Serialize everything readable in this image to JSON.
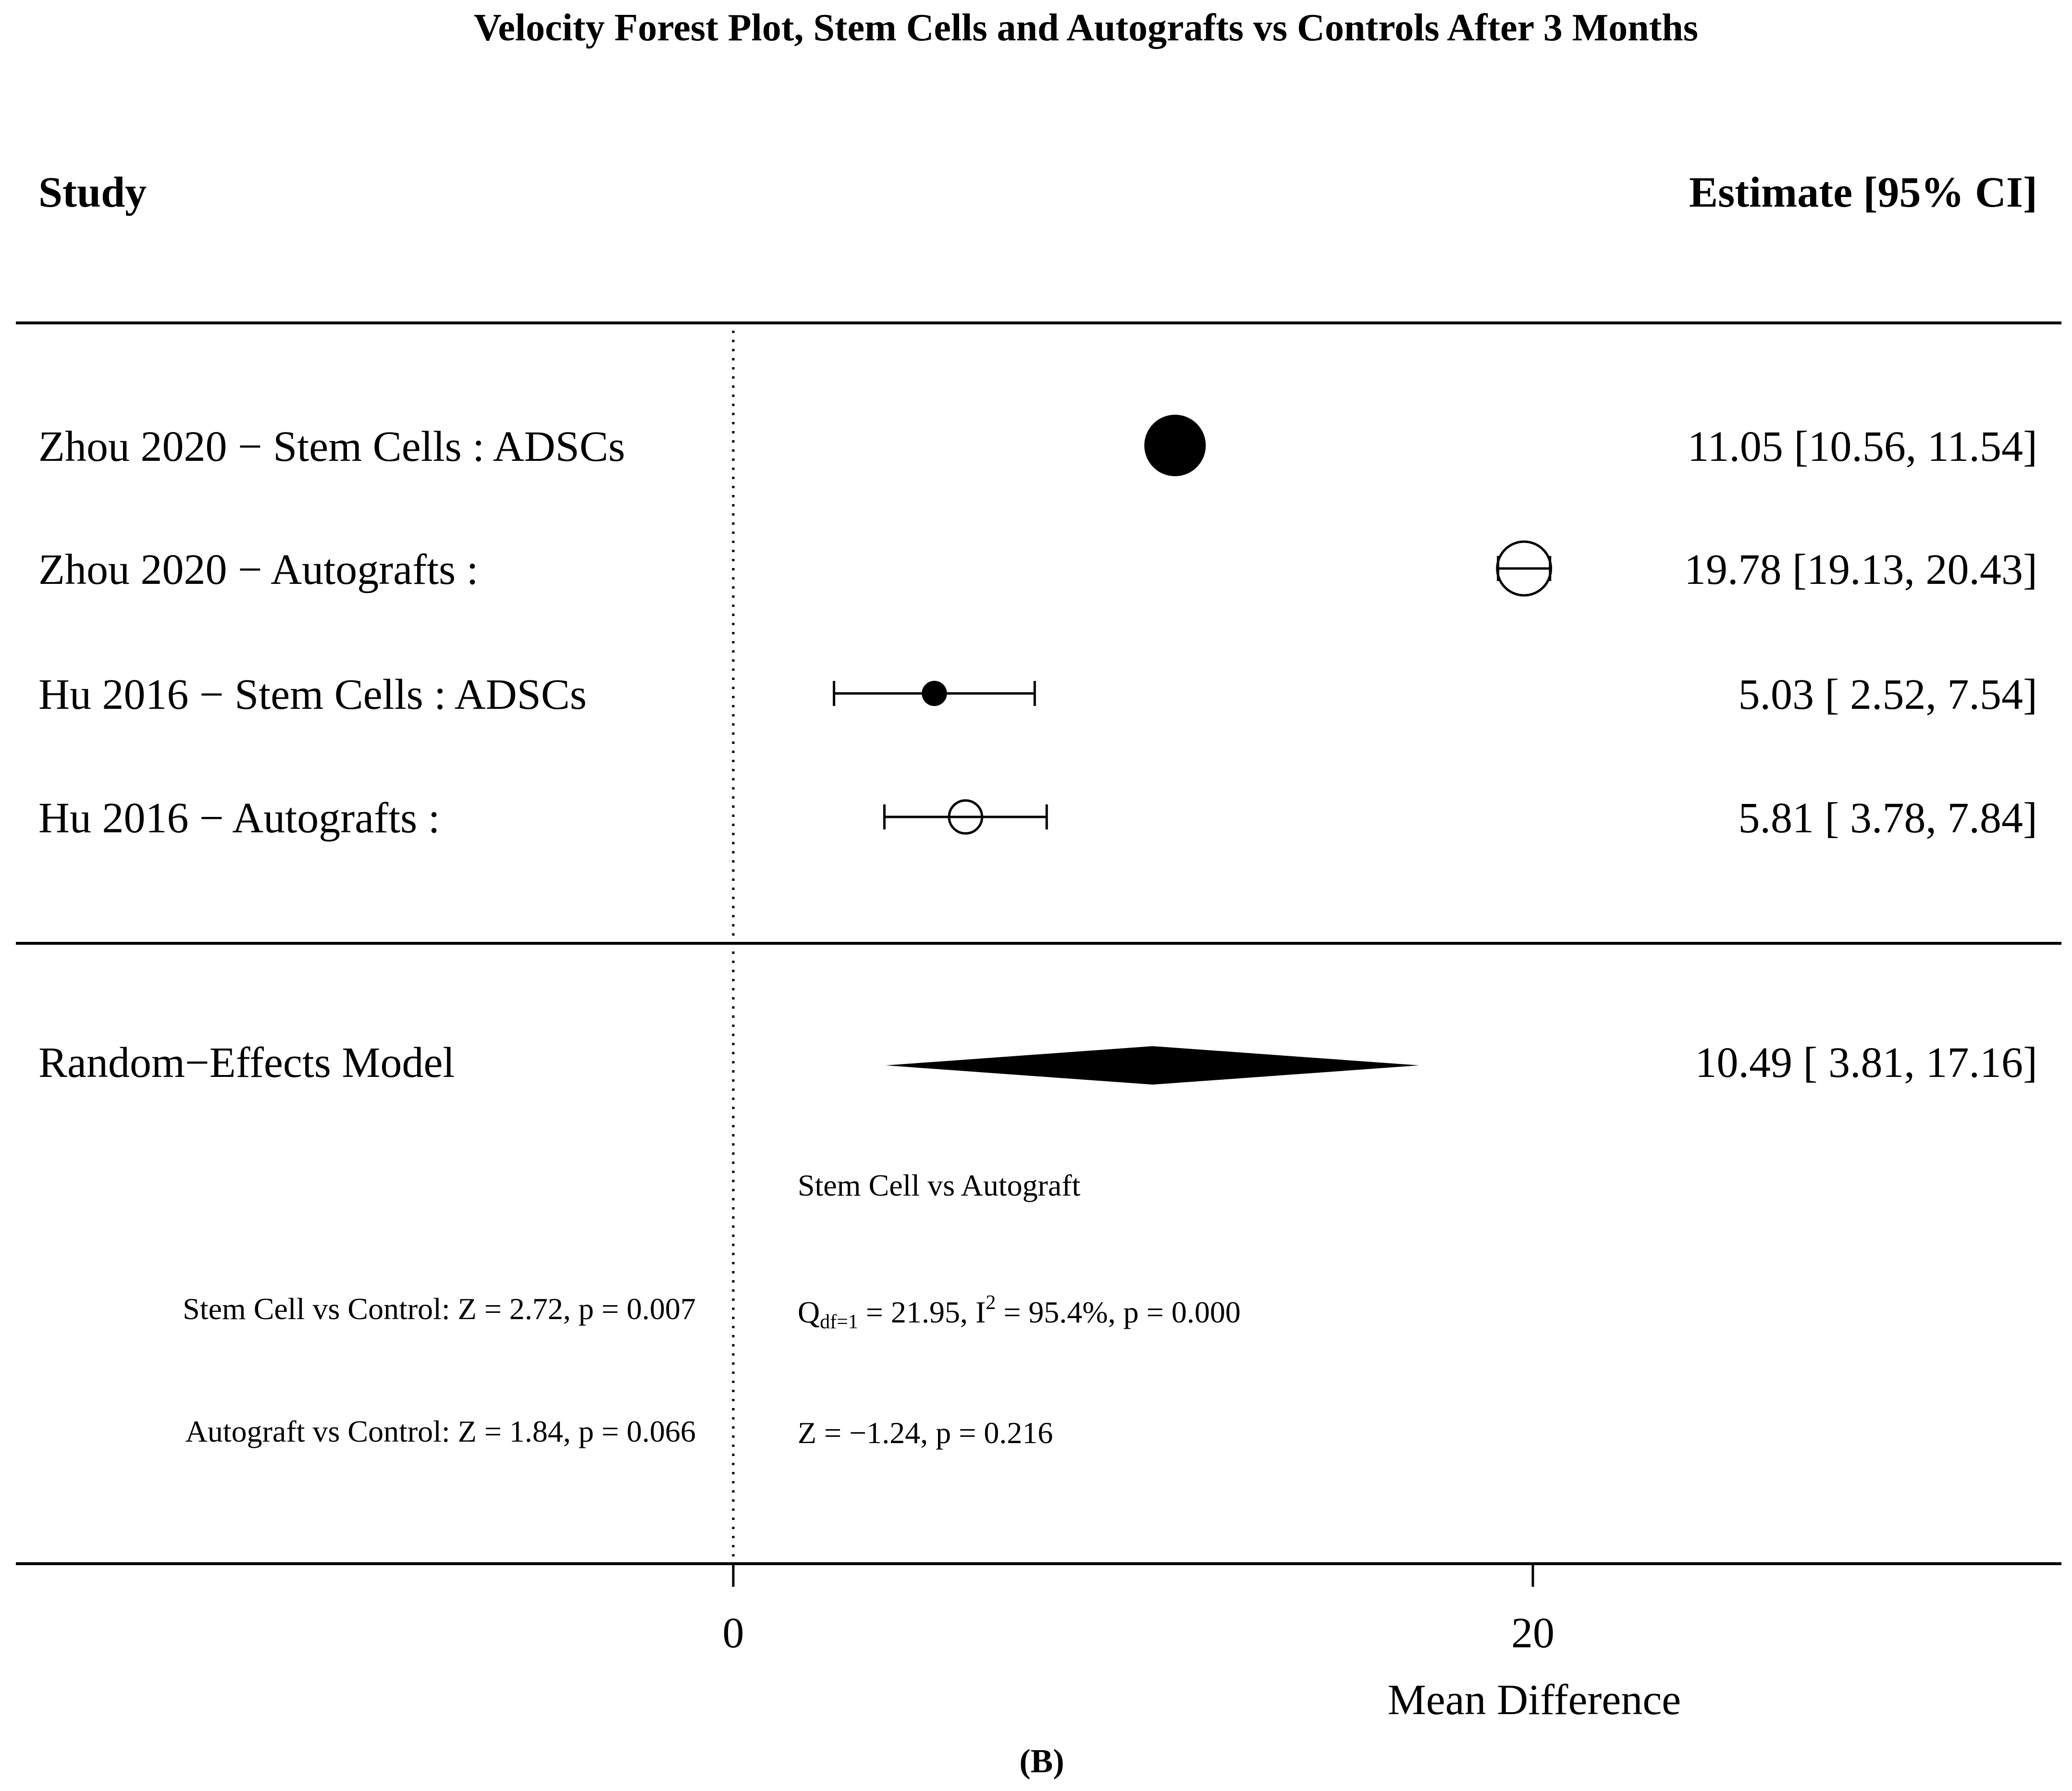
{
  "chart_data": {
    "type": "forest",
    "title": "Velocity Forest Plot, Stem Cells and Autografts vs Controls After 3 Months",
    "col_left": "Study",
    "col_right": "Estimate [95% CI]",
    "xlabel": "Mean Difference",
    "xticks": [
      0,
      20
    ],
    "xlim": [
      -18,
      34
    ],
    "reference_line": 0,
    "studies": [
      {
        "label": "Zhou 2020 − Stem Cells  :  ADSCs",
        "estimate": 11.05,
        "lower": 10.56,
        "upper": 11.54,
        "ci_text": "11.05 [10.56, 11.54]",
        "marker": "filled",
        "marker_scale": 1.0
      },
      {
        "label": "Zhou 2020 − Autografts  :",
        "estimate": 19.78,
        "lower": 19.13,
        "upper": 20.43,
        "ci_text": "19.78 [19.13, 20.43]",
        "marker": "open",
        "marker_scale": 0.85
      },
      {
        "label": "Hu 2016 − Stem Cells  :  ADSCs",
        "estimate": 5.03,
        "lower": 2.52,
        "upper": 7.54,
        "ci_text": "5.03 [ 2.52,  7.54]",
        "marker": "filled",
        "marker_scale": 0.3
      },
      {
        "label": "Hu 2016 − Autografts  :",
        "estimate": 5.81,
        "lower": 3.78,
        "upper": 7.84,
        "ci_text": "5.81 [ 3.78,  7.84]",
        "marker": "open",
        "marker_scale": 0.45
      }
    ],
    "summary": {
      "label": "Random−Effects Model",
      "estimate": 10.49,
      "lower": 3.81,
      "upper": 17.16,
      "ci_text": "10.49 [ 3.81, 17.16]"
    },
    "annotations": {
      "subgroup_heading": "Stem Cell vs Autograft",
      "stem_vs_control": "Stem Cell vs Control: Z = 2.72, p = 0.007",
      "auto_vs_control": "Autograft vs Control: Z = 1.84, p = 0.066",
      "q_main": "Q",
      "q_sub": "df=1",
      "q_mid": " = 21.95, I",
      "q_sup": "2",
      "q_end": " = 95.4%, p = 0.000",
      "z_test": "Z = −1.24, p = 0.216"
    },
    "panel_label": "(B)"
  }
}
